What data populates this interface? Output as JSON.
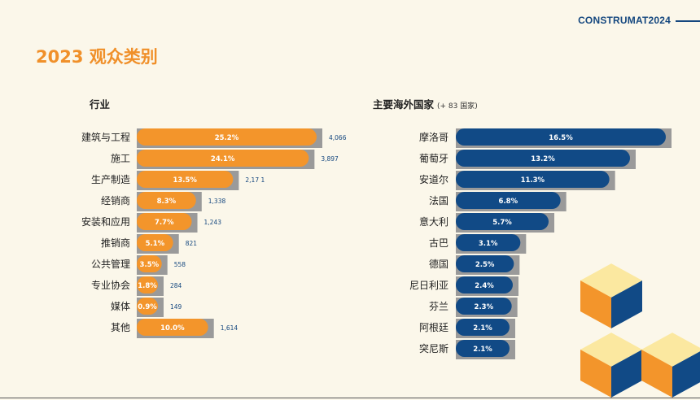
{
  "header": {
    "brand": "CONSTRUMAT2024"
  },
  "page": {
    "title": "2023 观众类别"
  },
  "industry": {
    "label": "行业"
  },
  "countries": {
    "label": "主要海外国家",
    "note": "(+ 83 国家)"
  },
  "colors": {
    "orange": "#f3952b",
    "blue": "#114a86",
    "shadow": "#9a9a9a",
    "value_text": "#14477f"
  },
  "chart_data": [
    {
      "type": "bar",
      "orientation": "horizontal",
      "title": "行业",
      "categories": [
        "建筑与工程",
        "施工",
        "生产制造",
        "经销商",
        "安装和应用",
        "推销商",
        "公共管理",
        "专业协会",
        "媒体",
        "其他"
      ],
      "series": [
        {
          "values": [
            25.2,
            24.1,
            13.5,
            8.3,
            7.7,
            5.1,
            3.5,
            1.8,
            0.9,
            10.0
          ],
          "labels": [
            "25.2%",
            "24.1%",
            "13.5%",
            "8.3%",
            "7.7%",
            "5.1%",
            "3.5%",
            "1.8%",
            "0.9%",
            "10.0%"
          ],
          "counts": [
            "4,066",
            "3,897",
            "2,17 1",
            "1,338",
            "1,243",
            "821",
            "558",
            "284",
            "149",
            "1,614"
          ]
        }
      ]
    },
    {
      "type": "bar",
      "orientation": "horizontal",
      "title": "主要海外国家",
      "categories": [
        "摩洛哥",
        "葡萄牙",
        "安道尔",
        "法国",
        "意大利",
        "古巴",
        "德国",
        "尼日利亚",
        "芬兰",
        "阿根廷",
        "突尼斯"
      ],
      "series": [
        {
          "values": [
            16.5,
            13.2,
            11.3,
            6.8,
            5.7,
            3.1,
            2.5,
            2.4,
            2.3,
            2.1,
            2.1
          ],
          "labels": [
            "16.5%",
            "13.2%",
            "11.3%",
            "6.8%",
            "5.7%",
            "3.1%",
            "2.5%",
            "2.4%",
            "2.3%",
            "2.1%",
            "2.1%"
          ]
        }
      ]
    }
  ]
}
